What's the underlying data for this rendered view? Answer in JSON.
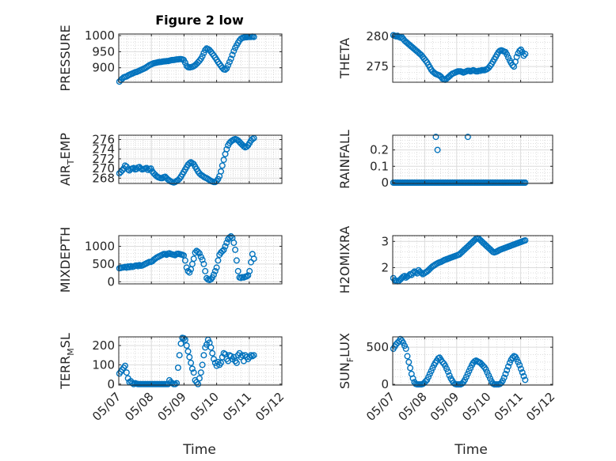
{
  "figure": {
    "title": "Figure 2 low",
    "marker_color": "#0072bd",
    "x_label": "Time",
    "x_ticks": [
      "05/07",
      "05/08",
      "05/09",
      "05/10",
      "05/11",
      "05/12"
    ]
  },
  "chart_data": [
    {
      "type": "scatter",
      "ylabel": "PRESSURE",
      "xlim": [
        0,
        5
      ],
      "ylim": [
        855,
        1005
      ],
      "yticks": [
        900,
        950,
        1000
      ],
      "x_key": "A",
      "values": [
        857,
        862,
        866,
        870,
        872,
        873,
        876,
        878,
        880,
        882,
        884,
        886,
        887,
        889,
        891,
        893,
        895,
        897,
        899,
        902,
        905,
        908,
        910,
        912,
        914,
        915,
        916,
        917,
        918,
        918,
        919,
        920,
        920,
        921,
        921,
        922,
        923,
        924,
        924,
        925,
        926,
        926,
        927,
        927,
        926,
        924,
        916,
        906,
        902,
        901,
        902,
        903,
        905,
        908,
        912,
        917,
        922,
        928,
        936,
        946,
        955,
        960,
        958,
        955,
        950,
        944,
        938,
        932,
        925,
        918,
        912,
        906,
        900,
        895,
        894,
        898,
        908,
        918,
        928,
        940,
        952,
        962,
        970,
        978,
        985,
        990,
        993,
        994,
        995,
        995,
        996,
        996,
        996,
        997,
        996
      ]
    },
    {
      "type": "scatter",
      "ylabel": "THETA",
      "xlim": [
        0,
        5
      ],
      "ylim": [
        272.4,
        280.4
      ],
      "yticks": [
        275,
        280
      ],
      "x_key": "A",
      "values": [
        280.2,
        280.1,
        280.0,
        280.1,
        279.9,
        279.8,
        279.9,
        279.6,
        279.3,
        279.1,
        278.9,
        278.7,
        278.5,
        278.3,
        278.1,
        277.9,
        277.7,
        277.5,
        277.3,
        277.1,
        276.9,
        276.6,
        276.3,
        276.0,
        275.7,
        275.3,
        274.9,
        274.5,
        274.2,
        274.0,
        273.8,
        273.7,
        273.6,
        273.5,
        273.3,
        273.0,
        272.9,
        272.8,
        273.0,
        273.2,
        273.4,
        273.6,
        273.8,
        273.9,
        274.0,
        274.1,
        274.2,
        274.2,
        274.2,
        274.1,
        274.0,
        274.1,
        274.2,
        274.3,
        274.3,
        274.2,
        274.3,
        274.4,
        274.3,
        274.2,
        274.2,
        274.3,
        274.3,
        274.4,
        274.4,
        274.4,
        274.5,
        274.6,
        274.8,
        275.1,
        275.4,
        275.8,
        276.2,
        276.6,
        277.0,
        277.4,
        277.6,
        277.7,
        277.6,
        277.5,
        277.4,
        277.0,
        276.5,
        276.0,
        275.6,
        275.2,
        275.0,
        275.8,
        276.6,
        277.2,
        277.6,
        277.8,
        277.4,
        276.8,
        277.1
      ]
    },
    {
      "type": "scatter",
      "ylabel": "AIR_TEMP",
      "ylabel_main": "AIR",
      "ylabel_sub": "T",
      "ylabel_rest": "EMP",
      "xlim": [
        0,
        5
      ],
      "ylim": [
        266.9,
        276.9
      ],
      "yticks": [
        268,
        270,
        272,
        274,
        276
      ],
      "x_key": "A",
      "values": [
        269.0,
        269.3,
        269.6,
        270.0,
        270.6,
        270.4,
        269.8,
        269.6,
        269.9,
        270.0,
        270.1,
        269.8,
        269.9,
        270.2,
        270.3,
        270.0,
        269.8,
        269.9,
        270.0,
        270.1,
        269.7,
        269.9,
        270.0,
        269.4,
        269.0,
        268.7,
        268.4,
        268.2,
        268.1,
        268.0,
        268.0,
        268.2,
        268.3,
        268.0,
        267.7,
        267.5,
        267.3,
        267.2,
        267.1,
        267.2,
        267.4,
        267.6,
        267.9,
        268.3,
        268.8,
        269.3,
        269.8,
        270.3,
        270.8,
        271.1,
        271.3,
        271.1,
        270.9,
        270.4,
        269.9,
        269.4,
        269.0,
        268.7,
        268.5,
        268.3,
        268.1,
        268.0,
        267.8,
        267.6,
        267.4,
        267.3,
        267.2,
        267.2,
        267.4,
        267.8,
        268.4,
        269.4,
        270.6,
        271.8,
        273.0,
        274.0,
        274.8,
        275.3,
        275.6,
        275.8,
        276.0,
        276.1,
        276.0,
        275.8,
        275.5,
        275.2,
        274.9,
        274.6,
        274.4,
        274.5,
        274.8,
        275.3,
        275.8,
        276.1,
        276.3
      ]
    },
    {
      "type": "scatter",
      "ylabel": "RAINFALL",
      "xlim": [
        0,
        5
      ],
      "ylim": [
        -0.005,
        0.29
      ],
      "yticks": [
        0,
        0.1,
        0.2
      ],
      "ytick_labels": [
        "0",
        "0.1",
        "0.2"
      ],
      "x_key": "A",
      "values": [
        0,
        0,
        0,
        0,
        0,
        0,
        0,
        0,
        0,
        0,
        0,
        0,
        0,
        0,
        0,
        0,
        0,
        0,
        0,
        0,
        0,
        0,
        0,
        0,
        0,
        0,
        0,
        0,
        0,
        0,
        0,
        0,
        0,
        0,
        0,
        0,
        0,
        0,
        0,
        0,
        0,
        0,
        0,
        0,
        0,
        0,
        0,
        0,
        0,
        0,
        0,
        0,
        0,
        0,
        0,
        0,
        0,
        0,
        0,
        0,
        0,
        0,
        0,
        0,
        0,
        0,
        0,
        0,
        0,
        0,
        0,
        0,
        0,
        0,
        0,
        0,
        0,
        0,
        0,
        0,
        0,
        0,
        0,
        0,
        0,
        0,
        0,
        0,
        0,
        0,
        0,
        0,
        0,
        0,
        0
      ],
      "extra_points": [
        [
          1.35,
          0.28
        ],
        [
          1.4,
          0.2
        ],
        [
          2.35,
          0.28
        ]
      ]
    },
    {
      "type": "scatter",
      "ylabel": "MIXDEPTH",
      "xlim": [
        0,
        5
      ],
      "ylim": [
        -60,
        1300
      ],
      "yticks": [
        0,
        500,
        1000
      ],
      "x_key": "A",
      "values": [
        380,
        390,
        400,
        405,
        420,
        400,
        430,
        410,
        440,
        420,
        430,
        450,
        460,
        440,
        470,
        450,
        460,
        480,
        500,
        520,
        540,
        560,
        560,
        580,
        620,
        650,
        680,
        700,
        720,
        740,
        760,
        780,
        780,
        760,
        790,
        800,
        780,
        770,
        760,
        750,
        780,
        790,
        780,
        770,
        760,
        740,
        600,
        400,
        300,
        260,
        350,
        500,
        650,
        820,
        870,
        840,
        800,
        700,
        620,
        500,
        300,
        100,
        60,
        50,
        70,
        120,
        200,
        300,
        400,
        600,
        760,
        820,
        860,
        900,
        1000,
        1100,
        1200,
        1250,
        1280,
        1240,
        1100,
        900,
        600,
        300,
        120,
        110,
        130,
        120,
        140,
        150,
        180,
        300,
        550,
        780,
        650
      ]
    },
    {
      "type": "scatter",
      "ylabel": "H2OMIXRA",
      "xlim": [
        0,
        5
      ],
      "ylim": [
        1.38,
        3.22
      ],
      "yticks": [
        2,
        3
      ],
      "x_key": "A",
      "values": [
        1.6,
        1.52,
        1.5,
        1.48,
        1.5,
        1.55,
        1.6,
        1.65,
        1.68,
        1.62,
        1.66,
        1.7,
        1.75,
        1.72,
        1.8,
        1.85,
        1.82,
        1.78,
        1.9,
        1.84,
        1.8,
        1.75,
        1.78,
        1.82,
        1.85,
        1.9,
        1.95,
        2.0,
        2.05,
        2.08,
        2.12,
        2.15,
        2.18,
        2.2,
        2.22,
        2.25,
        2.28,
        2.3,
        2.32,
        2.34,
        2.36,
        2.38,
        2.4,
        2.42,
        2.44,
        2.46,
        2.48,
        2.5,
        2.55,
        2.6,
        2.65,
        2.7,
        2.75,
        2.8,
        2.85,
        2.9,
        2.95,
        3.0,
        3.05,
        3.1,
        3.12,
        3.1,
        3.05,
        3.0,
        2.95,
        2.9,
        2.85,
        2.8,
        2.75,
        2.7,
        2.65,
        2.6,
        2.58,
        2.6,
        2.62,
        2.65,
        2.68,
        2.7,
        2.72,
        2.74,
        2.76,
        2.78,
        2.8,
        2.82,
        2.84,
        2.86,
        2.88,
        2.9,
        2.92,
        2.94,
        2.96,
        2.98,
        3.0,
        3.02,
        3.04
      ]
    },
    {
      "type": "scatter",
      "ylabel": "TERR_MSL",
      "ylabel_main": "TERR",
      "ylabel_sub": "M",
      "ylabel_rest": "SL",
      "xlim": [
        0,
        5
      ],
      "ylim": [
        -5,
        245
      ],
      "yticks": [
        0,
        100,
        200
      ],
      "x_key": "A",
      "values": [
        55,
        65,
        75,
        85,
        95,
        60,
        30,
        10,
        15,
        5,
        0,
        5,
        2,
        0,
        0,
        0,
        0,
        0,
        0,
        0,
        0,
        0,
        0,
        0,
        0,
        0,
        0,
        0,
        0,
        0,
        0,
        0,
        0,
        0,
        0,
        20,
        10,
        5,
        0,
        0,
        5,
        85,
        150,
        210,
        240,
        238,
        230,
        200,
        170,
        140,
        110,
        80,
        60,
        20,
        10,
        0,
        30,
        60,
        100,
        150,
        190,
        205,
        230,
        215,
        190,
        160,
        130,
        110,
        95,
        115,
        100,
        110,
        140,
        160,
        155,
        130,
        120,
        150,
        145,
        130,
        140,
        120,
        110,
        150,
        160,
        140,
        150,
        120,
        150,
        140,
        130,
        140,
        150,
        145,
        150
      ]
    },
    {
      "type": "scatter",
      "ylabel": "SUN_FLUX",
      "ylabel_main": "SUN",
      "ylabel_sub": "F",
      "ylabel_rest": "LUX",
      "xlim": [
        0,
        5
      ],
      "ylim": [
        -10,
        640
      ],
      "yticks": [
        0,
        500
      ],
      "x_key": "A",
      "values": [
        480,
        510,
        540,
        560,
        580,
        610,
        590,
        560,
        520,
        480,
        380,
        300,
        220,
        140,
        80,
        30,
        5,
        0,
        0,
        0,
        0,
        5,
        20,
        40,
        60,
        100,
        140,
        180,
        220,
        260,
        290,
        320,
        350,
        360,
        330,
        300,
        280,
        250,
        210,
        170,
        120,
        80,
        50,
        20,
        5,
        0,
        0,
        0,
        0,
        10,
        30,
        60,
        100,
        140,
        180,
        220,
        260,
        290,
        310,
        320,
        310,
        300,
        290,
        270,
        250,
        230,
        200,
        160,
        120,
        80,
        40,
        10,
        0,
        0,
        0,
        0,
        5,
        20,
        50,
        90,
        140,
        190,
        240,
        290,
        330,
        360,
        380,
        370,
        340,
        300,
        260,
        210,
        160,
        110,
        60
      ]
    }
  ]
}
